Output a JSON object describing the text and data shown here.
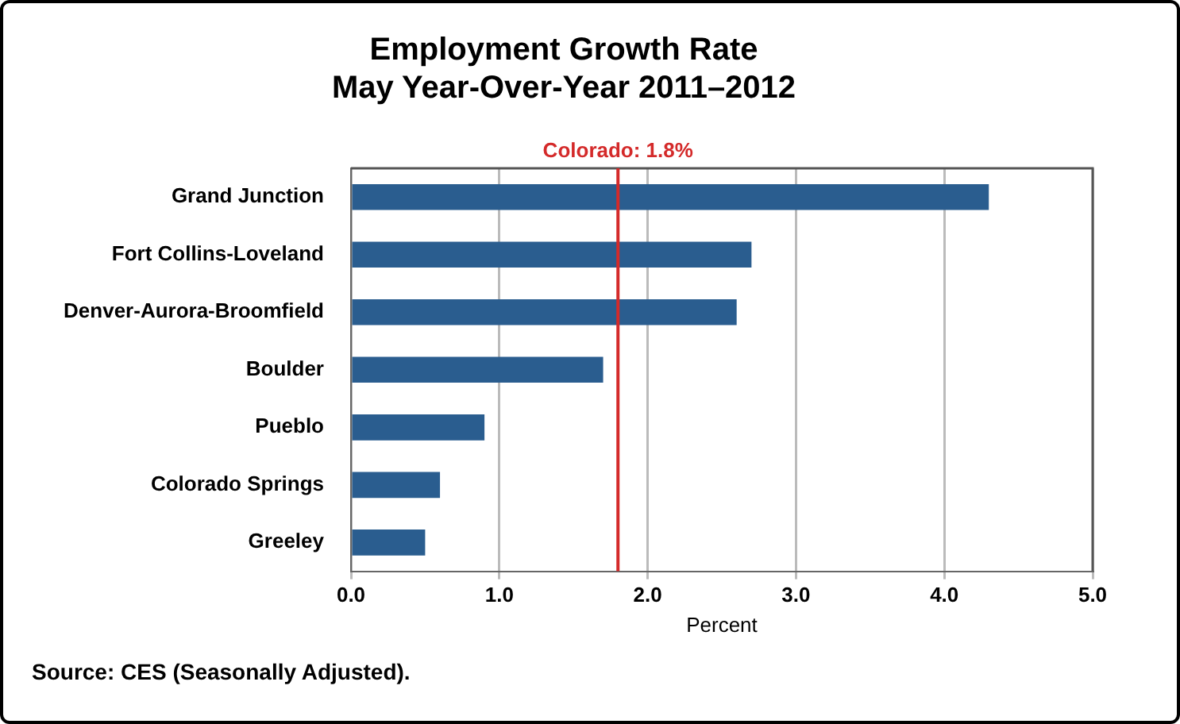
{
  "chart_data": {
    "type": "bar",
    "orientation": "horizontal",
    "title": "Employment Growth Rate",
    "subtitle": "May Year-Over-Year 2011–2012",
    "xlabel": "Percent",
    "categories": [
      "Grand Junction",
      "Fort Collins-Loveland",
      "Denver-Aurora-Broomfield",
      "Boulder",
      "Pueblo",
      "Colorado Springs",
      "Greeley"
    ],
    "values": [
      4.3,
      2.7,
      2.6,
      1.7,
      0.9,
      0.6,
      0.5
    ],
    "color": "#2a5d8f",
    "xlim": [
      0,
      5
    ],
    "xticks": [
      {
        "value": 0,
        "label": "0.0"
      },
      {
        "value": 1,
        "label": "1.0"
      },
      {
        "value": 2,
        "label": "2.0"
      },
      {
        "value": 3,
        "label": "3.0"
      },
      {
        "value": 4,
        "label": "4.0"
      },
      {
        "value": 5,
        "label": "5.0"
      }
    ],
    "grid": "x",
    "ref_lines": [
      {
        "axis": "x",
        "value": 1.8,
        "label": "Colorado: 1.8%",
        "color": "#d42a2a"
      }
    ],
    "annotations": [
      "Source: CES (Seasonally Adjusted)."
    ]
  }
}
